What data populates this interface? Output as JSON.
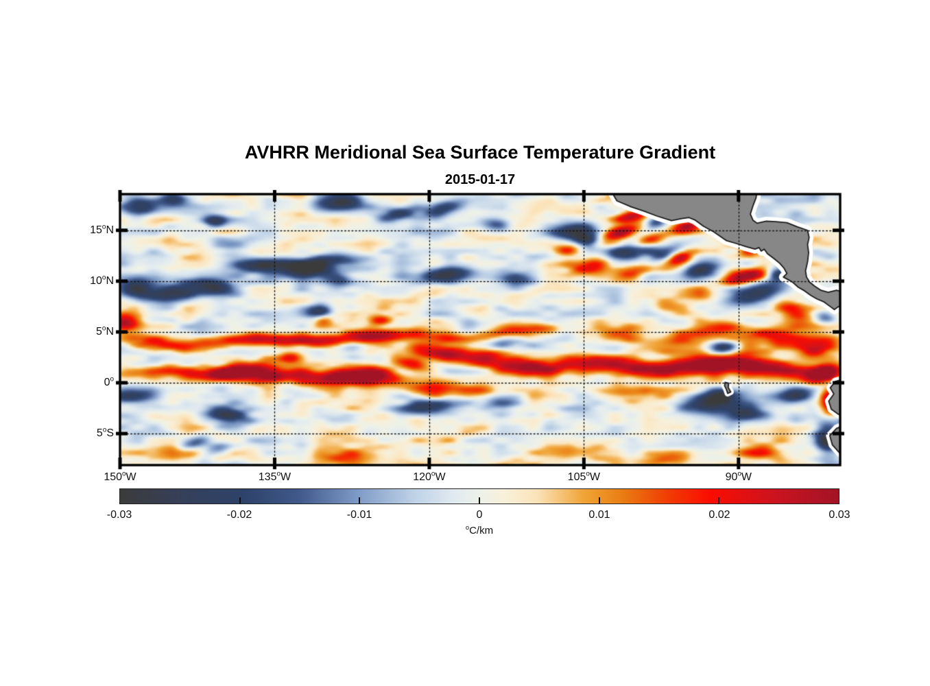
{
  "chart_data": {
    "type": "heatmap",
    "title": "AVHRR Meridional Sea Surface Temperature Gradient",
    "subtitle": "2015-01-17",
    "deg": "o",
    "unit": {
      "sup": "o",
      "text": "C/km"
    },
    "x_axis": {
      "range": [
        -150,
        -80.14
      ],
      "ticks": [
        {
          "v": -150,
          "num": "150",
          "hem": "W"
        },
        {
          "v": -135,
          "num": "135",
          "hem": "W"
        },
        {
          "v": -120,
          "num": "120",
          "hem": "W"
        },
        {
          "v": -105,
          "num": "105",
          "hem": "W"
        },
        {
          "v": -90,
          "num": "90",
          "hem": "W"
        }
      ],
      "grid_ticks": [
        -135,
        -120,
        -105,
        -90
      ]
    },
    "y_axis": {
      "range": [
        18.56,
        -8.1
      ],
      "ticks": [
        {
          "v": 15,
          "num": "15",
          "hem": "N"
        },
        {
          "v": 10,
          "num": "10",
          "hem": "N"
        },
        {
          "v": 5,
          "num": "5",
          "hem": "N"
        },
        {
          "v": 0,
          "num": "0",
          "hem": ""
        },
        {
          "v": -5,
          "num": "5",
          "hem": "S"
        }
      ]
    },
    "colorbar": {
      "min": -0.03,
      "max": 0.03,
      "labels": [
        "-0.03",
        "-0.02",
        "-0.01",
        "0",
        "0.01",
        "0.02",
        "0.03"
      ]
    },
    "colormap": [
      {
        "t": 0.0,
        "c": "#3b3b3b"
      },
      {
        "t": 0.09,
        "c": "#35405a"
      },
      {
        "t": 0.17,
        "c": "#2d4269"
      },
      {
        "t": 0.25,
        "c": "#41598b"
      },
      {
        "t": 0.33,
        "c": "#7e9ac6"
      },
      {
        "t": 0.41,
        "c": "#bfd2e7"
      },
      {
        "t": 0.465,
        "c": "#e1eaf0"
      },
      {
        "t": 0.5,
        "c": "#edf1e9"
      },
      {
        "t": 0.535,
        "c": "#f8f0da"
      },
      {
        "t": 0.58,
        "c": "#fbe3b9"
      },
      {
        "t": 0.645,
        "c": "#f0a437"
      },
      {
        "t": 0.7,
        "c": "#e97c12"
      },
      {
        "t": 0.76,
        "c": "#f03e04"
      },
      {
        "t": 0.82,
        "c": "#fb0d00"
      },
      {
        "t": 0.91,
        "c": "#cc1320"
      },
      {
        "t": 1.0,
        "c": "#a21326"
      }
    ],
    "land": {
      "fill": "#878787",
      "outline": "#1a1a1a",
      "halo": "#ffffff"
    },
    "land_polygons": [
      {
        "name": "central-america-mexico",
        "halo": 13,
        "points": [
          [
            -102.6,
            19.3
          ],
          [
            -101.8,
            17.9
          ],
          [
            -100.4,
            17.3
          ],
          [
            -99.2,
            16.9
          ],
          [
            -97.9,
            16.4
          ],
          [
            -96.5,
            15.95
          ],
          [
            -95.5,
            16.15
          ],
          [
            -94.8,
            16.25
          ],
          [
            -94.2,
            16.0
          ],
          [
            -93.4,
            15.4
          ],
          [
            -92.4,
            14.85
          ],
          [
            -91.2,
            14.0
          ],
          [
            -90.2,
            13.7
          ],
          [
            -89.3,
            13.4
          ],
          [
            -88.4,
            13.15
          ],
          [
            -88.0,
            13.3
          ],
          [
            -87.8,
            12.95
          ],
          [
            -87.5,
            13.15
          ],
          [
            -87.2,
            12.7
          ],
          [
            -86.6,
            12.25
          ],
          [
            -86.0,
            11.75
          ],
          [
            -85.6,
            11.3
          ],
          [
            -85.3,
            10.75
          ],
          [
            -85.65,
            10.4
          ],
          [
            -85.1,
            10.1
          ],
          [
            -84.7,
            9.85
          ],
          [
            -84.2,
            9.4
          ],
          [
            -83.6,
            9.05
          ],
          [
            -83.0,
            8.6
          ],
          [
            -82.4,
            8.25
          ],
          [
            -81.7,
            7.95
          ],
          [
            -81.1,
            7.5
          ],
          [
            -80.7,
            7.2
          ],
          [
            -80.3,
            7.5
          ],
          [
            -79.6,
            7.35
          ],
          [
            -79.6,
            8.9
          ],
          [
            -80.5,
            9.1
          ],
          [
            -81.3,
            8.9
          ],
          [
            -82.0,
            9.1
          ],
          [
            -82.6,
            9.5
          ],
          [
            -83.1,
            9.9
          ],
          [
            -83.4,
            10.4
          ],
          [
            -83.5,
            11.0
          ],
          [
            -83.3,
            11.9
          ],
          [
            -83.2,
            12.8
          ],
          [
            -83.3,
            13.6
          ],
          [
            -83.15,
            14.3
          ],
          [
            -83.3,
            15.0
          ],
          [
            -84.3,
            15.35
          ],
          [
            -85.3,
            15.75
          ],
          [
            -86.4,
            15.85
          ],
          [
            -87.3,
            15.9
          ],
          [
            -88.2,
            15.7
          ],
          [
            -88.6,
            16.0
          ],
          [
            -88.85,
            16.6
          ],
          [
            -88.6,
            17.4
          ],
          [
            -88.3,
            18.2
          ],
          [
            -88.15,
            19.3
          ]
        ]
      },
      {
        "name": "south-america-north",
        "halo": 11,
        "points": [
          [
            -79.6,
            0.4
          ],
          [
            -80.6,
            0.15
          ],
          [
            -81.1,
            -0.5
          ],
          [
            -80.75,
            -1.1
          ],
          [
            -81.25,
            -1.8
          ],
          [
            -81.0,
            -2.6
          ],
          [
            -80.3,
            -3.1
          ],
          [
            -79.6,
            -3.4
          ]
        ]
      },
      {
        "name": "south-america-south",
        "halo": 11,
        "points": [
          [
            -79.6,
            -4.1
          ],
          [
            -80.5,
            -4.5
          ],
          [
            -81.15,
            -5.2
          ],
          [
            -80.9,
            -6.1
          ],
          [
            -80.2,
            -6.9
          ],
          [
            -79.6,
            -7.3
          ]
        ]
      },
      {
        "name": "galapagos-islands",
        "halo": 9,
        "points": [
          [
            -91.3,
            0.05
          ],
          [
            -90.95,
            -0.05
          ],
          [
            -91.0,
            -0.45
          ],
          [
            -90.75,
            -0.9
          ],
          [
            -91.05,
            -1.05
          ],
          [
            -91.2,
            -0.6
          ],
          [
            -91.35,
            -0.3
          ]
        ]
      }
    ],
    "field_features": [
      [
        -149,
        1.0,
        1.5,
        0.5,
        0,
        0.014
      ],
      [
        -146,
        1.2,
        1.5,
        0.5,
        -5,
        0.016
      ],
      [
        -143,
        0.9,
        1.5,
        0.5,
        0,
        0.018
      ],
      [
        -140,
        0.9,
        1.8,
        0.55,
        -8,
        0.026
      ],
      [
        -137.5,
        1.1,
        1.8,
        0.55,
        -10,
        0.03
      ],
      [
        -135,
        0.6,
        1.6,
        0.5,
        -8,
        0.022
      ],
      [
        -132,
        0.5,
        1.6,
        0.5,
        0,
        0.018
      ],
      [
        -129,
        0.4,
        1.6,
        0.55,
        0,
        0.026
      ],
      [
        -126.8,
        0.7,
        1.6,
        0.55,
        8,
        0.03
      ],
      [
        -124.6,
        0.9,
        1.4,
        0.55,
        12,
        0.026
      ],
      [
        -122,
        1.9,
        1.6,
        0.55,
        16,
        0.026
      ],
      [
        -119.5,
        2.9,
        1.6,
        0.5,
        8,
        0.024
      ],
      [
        -117,
        3.0,
        1.4,
        0.5,
        0,
        0.02
      ],
      [
        -114.5,
        2.4,
        1.6,
        0.55,
        -10,
        0.026
      ],
      [
        -112,
        1.7,
        1.6,
        0.55,
        -8,
        0.03
      ],
      [
        -110,
        1.2,
        1.4,
        0.5,
        -5,
        0.022
      ],
      [
        -107.5,
        1.5,
        1.4,
        0.5,
        5,
        0.016
      ],
      [
        -105,
        2.1,
        1.5,
        0.55,
        5,
        0.018
      ],
      [
        -102.5,
        1.8,
        1.6,
        0.6,
        -5,
        0.022
      ],
      [
        -100,
        1.4,
        1.6,
        0.6,
        -5,
        0.026
      ],
      [
        -97.5,
        1.2,
        1.5,
        0.6,
        0,
        0.022
      ],
      [
        -95,
        1.5,
        1.5,
        0.6,
        5,
        0.022
      ],
      [
        -92.5,
        1.8,
        1.5,
        0.6,
        5,
        0.024
      ],
      [
        -90,
        2.0,
        1.6,
        0.6,
        0,
        0.03
      ],
      [
        -87.5,
        1.5,
        1.5,
        0.6,
        -8,
        0.024
      ],
      [
        -85,
        1.1,
        1.4,
        0.6,
        -5,
        0.022
      ],
      [
        -82.5,
        0.7,
        1.3,
        0.6,
        -15,
        0.024
      ],
      [
        -149,
        4.4,
        1.4,
        0.45,
        -5,
        0.018
      ],
      [
        -146.5,
        3.9,
        1.4,
        0.45,
        -8,
        0.016
      ],
      [
        -144,
        3.5,
        1.4,
        0.45,
        0,
        0.018
      ],
      [
        -141.5,
        3.8,
        1.4,
        0.45,
        6,
        0.014
      ],
      [
        -139,
        4.1,
        1.4,
        0.45,
        5,
        0.016
      ],
      [
        -136.5,
        4.4,
        1.4,
        0.45,
        3,
        0.018
      ],
      [
        -134,
        4.2,
        1.5,
        0.45,
        -3,
        0.022
      ],
      [
        -131.5,
        4.0,
        1.5,
        0.45,
        0,
        0.022
      ],
      [
        -129,
        4.2,
        1.4,
        0.45,
        4,
        0.018
      ],
      [
        -126.5,
        4.5,
        1.4,
        0.45,
        4,
        0.022
      ],
      [
        -124,
        4.7,
        1.4,
        0.45,
        2,
        0.024
      ],
      [
        -121.5,
        4.8,
        1.4,
        0.45,
        0,
        0.02
      ],
      [
        -119,
        4.4,
        1.3,
        0.45,
        -6,
        0.016
      ],
      [
        -116.5,
        4.3,
        1.3,
        0.45,
        0,
        0.014
      ],
      [
        -114,
        4.6,
        1.3,
        0.45,
        5,
        0.016
      ],
      [
        -111.5,
        5.0,
        1.3,
        0.45,
        6,
        0.02
      ],
      [
        -109,
        5.3,
        1.3,
        0.45,
        3,
        0.018
      ],
      [
        -149.6,
        5.9,
        1.0,
        0.55,
        0,
        0.028
      ],
      [
        -130.3,
        6.2,
        0.7,
        0.4,
        0,
        0.018
      ],
      [
        -124.8,
        6.1,
        0.8,
        0.4,
        0,
        0.018
      ],
      [
        -133.3,
        2.5,
        0.8,
        0.45,
        0,
        0.016
      ],
      [
        -120,
        -0.6,
        2.2,
        0.5,
        -4,
        0.016
      ],
      [
        -115.5,
        -0.9,
        1.5,
        0.5,
        0,
        0.014
      ],
      [
        -101,
        -0.8,
        1.8,
        0.6,
        0,
        0.012
      ],
      [
        -143,
        -6.8,
        2.2,
        0.7,
        0,
        0.012
      ],
      [
        -128,
        -7.5,
        1.8,
        0.6,
        0,
        0.012
      ],
      [
        -105,
        -6.6,
        2.2,
        0.7,
        0,
        0.01
      ],
      [
        -97,
        -7.4,
        1.8,
        0.6,
        0,
        0.014
      ],
      [
        -88,
        -6.9,
        1.8,
        0.6,
        0,
        0.012
      ],
      [
        -101.5,
        4.9,
        2.2,
        0.8,
        4,
        0.014
      ],
      [
        -96,
        4.2,
        1.8,
        0.7,
        -5,
        0.012
      ],
      [
        -92,
        5.1,
        1.8,
        0.7,
        0,
        0.016
      ],
      [
        -86.5,
        4.6,
        2.2,
        0.7,
        5,
        0.018
      ],
      [
        -82.5,
        3.5,
        1.5,
        0.8,
        -10,
        0.02
      ],
      [
        -84,
        6.4,
        1.3,
        0.6,
        0,
        0.012
      ],
      [
        -93.5,
        8.8,
        1.4,
        0.6,
        0,
        0.014
      ],
      [
        -97,
        7.8,
        1.8,
        0.7,
        5,
        0.012
      ],
      [
        -106.3,
        13.2,
        1.3,
        0.55,
        -10,
        0.02
      ],
      [
        -104.8,
        13.9,
        1.0,
        0.55,
        0,
        -0.028
      ],
      [
        -101.3,
        14.8,
        1.5,
        0.45,
        -18,
        0.03
      ],
      [
        -98.8,
        13.9,
        1.3,
        0.45,
        -18,
        0.028
      ],
      [
        -100.3,
        13.1,
        1.7,
        0.55,
        -15,
        -0.03
      ],
      [
        -97.3,
        12.7,
        1.2,
        0.5,
        -15,
        -0.022
      ],
      [
        -104,
        11.6,
        1.9,
        0.65,
        -10,
        0.022
      ],
      [
        -100.3,
        10.9,
        1.3,
        0.55,
        -10,
        0.018
      ],
      [
        -95.7,
        12.3,
        1.0,
        0.5,
        -20,
        0.026
      ],
      [
        -93.6,
        11.1,
        1.5,
        0.6,
        -15,
        -0.028
      ],
      [
        -89,
        12.9,
        0.7,
        0.4,
        0,
        0.018
      ],
      [
        -89.2,
        10.5,
        1.6,
        0.5,
        -14,
        0.034
      ],
      [
        -86.1,
        10.7,
        0.9,
        0.55,
        0,
        -0.026
      ],
      [
        -88.3,
        8.8,
        2.0,
        0.7,
        -12,
        -0.03
      ],
      [
        -85,
        7.4,
        1.0,
        0.55,
        0,
        0.016
      ],
      [
        -81.6,
        6.5,
        0.8,
        0.5,
        0,
        -0.02
      ],
      [
        -100.4,
        16.4,
        1.1,
        0.4,
        -12,
        0.026
      ],
      [
        -98,
        15.8,
        0.9,
        0.42,
        -12,
        -0.022
      ],
      [
        -94.8,
        15.4,
        1.1,
        0.42,
        -15,
        0.026
      ],
      [
        -148.5,
        9.3,
        1.5,
        0.65,
        0,
        -0.026
      ],
      [
        -144.8,
        8.9,
        2.2,
        0.65,
        -4,
        -0.03
      ],
      [
        -141,
        9.4,
        1.4,
        0.55,
        6,
        -0.02
      ],
      [
        -131.7,
        11.0,
        1.8,
        0.5,
        -5,
        -0.026
      ],
      [
        -128.8,
        10.2,
        1.4,
        0.5,
        8,
        -0.02
      ],
      [
        -118,
        10.7,
        1.8,
        0.55,
        -6,
        -0.024
      ],
      [
        -111.5,
        10.1,
        1.4,
        0.55,
        0,
        -0.014
      ],
      [
        -136.6,
        11.6,
        2.2,
        0.5,
        -4,
        -0.028
      ],
      [
        -130,
        11.9,
        2.4,
        0.45,
        -5,
        -0.024
      ],
      [
        -148,
        17.3,
        1.3,
        0.55,
        0,
        -0.024
      ],
      [
        -144.6,
        18.1,
        1.2,
        0.5,
        0,
        -0.022
      ],
      [
        -140.8,
        15.9,
        0.8,
        0.45,
        0,
        -0.022
      ],
      [
        -128.5,
        17.8,
        1.6,
        0.5,
        -5,
        -0.024
      ],
      [
        -123,
        16.6,
        1.6,
        0.55,
        -10,
        -0.024
      ],
      [
        -118.5,
        17.2,
        1.4,
        0.55,
        -15,
        -0.022
      ],
      [
        -113.5,
        15.6,
        1.1,
        0.5,
        0,
        -0.016
      ],
      [
        -106,
        14.9,
        1.6,
        0.55,
        -8,
        -0.022
      ],
      [
        -130.6,
        7.0,
        0.9,
        0.5,
        0,
        -0.026
      ],
      [
        -112.5,
        3.9,
        1.3,
        0.5,
        0,
        -0.012
      ],
      [
        -127.5,
        3.6,
        1.3,
        0.5,
        0,
        -0.012
      ],
      [
        -91.4,
        3.4,
        0.9,
        0.5,
        0,
        -0.022
      ],
      [
        -148.8,
        -1.3,
        1.7,
        0.6,
        -5,
        -0.024
      ],
      [
        -139.5,
        -3.2,
        1.6,
        0.65,
        8,
        -0.026
      ],
      [
        -143,
        -6.1,
        1.0,
        0.45,
        -15,
        -0.016
      ],
      [
        -140.7,
        -6.6,
        1.2,
        0.5,
        -15,
        -0.018
      ],
      [
        -120.5,
        -2.4,
        2.4,
        0.55,
        -4,
        -0.024
      ],
      [
        -113,
        -2.0,
        1.3,
        0.55,
        0,
        -0.016
      ],
      [
        -93.5,
        -2.1,
        1.7,
        0.7,
        -6,
        -0.026
      ],
      [
        -91.5,
        -1.2,
        1.2,
        0.6,
        0,
        -0.022
      ],
      [
        -89.3,
        -2.8,
        1.5,
        0.65,
        -10,
        -0.024
      ],
      [
        -84.5,
        -1.2,
        1.6,
        0.7,
        -10,
        -0.024
      ],
      [
        -81.3,
        -5.3,
        0.9,
        1.5,
        0,
        -0.028
      ],
      [
        -81.1,
        -2.0,
        0.7,
        0.9,
        0,
        0.03
      ],
      [
        -81.5,
        0.9,
        1.0,
        0.6,
        -20,
        0.022
      ]
    ],
    "noise_octaves": [
      [
        3.4,
        1.15,
        0.0058,
        0,
        0
      ],
      [
        1.6,
        0.62,
        0.0042,
        13.7,
        5.1
      ],
      [
        8.5,
        3.1,
        0.003,
        3.2,
        9.4
      ]
    ]
  }
}
